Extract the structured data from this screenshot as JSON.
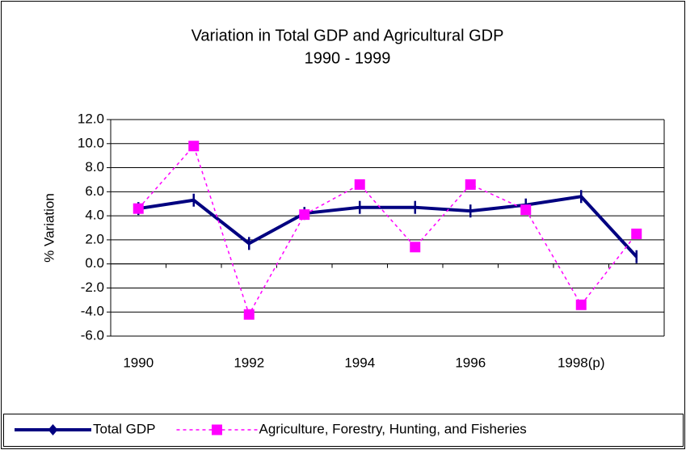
{
  "chart_data": {
    "type": "line",
    "title": "Variation in Total GDP and Agricultural GDP",
    "subtitle": "1990 - 1999",
    "y_label": "% Variation",
    "categories": [
      "1990",
      null,
      "1992",
      null,
      "1994",
      null,
      "1996",
      null,
      "1998(p)",
      null
    ],
    "series": [
      {
        "name": "Total GDP",
        "color": "#000080",
        "dash": false,
        "marker": "tick",
        "values": [
          4.6,
          5.3,
          1.7,
          4.2,
          4.7,
          4.7,
          4.4,
          4.9,
          5.6,
          0.6
        ]
      },
      {
        "name": "Agriculture, Forestry, Hunting, and Fisheries",
        "color": "#ff00ff",
        "dash": true,
        "marker": "square",
        "values": [
          4.6,
          9.8,
          -4.2,
          4.1,
          6.6,
          1.4,
          6.6,
          4.5,
          -3.4,
          2.5
        ]
      }
    ],
    "ylim": [
      -6,
      12
    ],
    "yticks": [
      {
        "value": -6,
        "label": "-6.0"
      },
      {
        "value": -4,
        "label": "-4.0"
      },
      {
        "value": -2,
        "label": "-2.0"
      },
      {
        "value": 0,
        "label": "0.0"
      },
      {
        "value": 2,
        "label": "2.0"
      },
      {
        "value": 4,
        "label": "4.0"
      },
      {
        "value": 6,
        "label": "6.0"
      },
      {
        "value": 8,
        "label": "8.0"
      },
      {
        "value": 10,
        "label": "10.0"
      },
      {
        "value": 12,
        "label": "12.0"
      }
    ],
    "grid": true,
    "legend": "bottom"
  }
}
